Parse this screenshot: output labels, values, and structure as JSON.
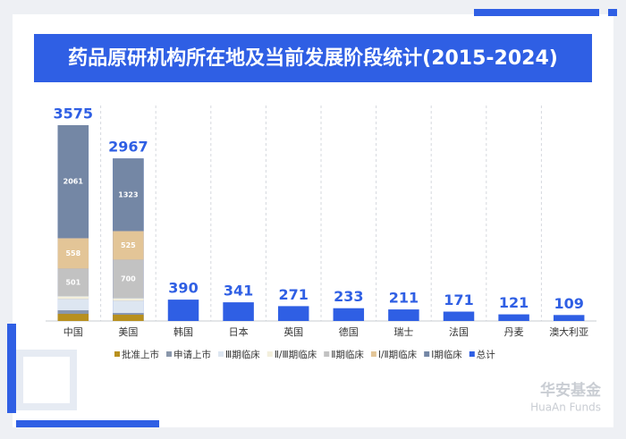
{
  "chart_data": {
    "type": "stacked_bar",
    "title": "药品原研机构所在地及当前发展阶段统计(2015-2024)",
    "categories": [
      "中国",
      "美国",
      "韩国",
      "日本",
      "英国",
      "德国",
      "瑞士",
      "法国",
      "丹麦",
      "澳大利亚"
    ],
    "series": [
      {
        "name": "批准上市",
        "color": "#b8901e",
        "values": [
          130,
          115,
          null,
          null,
          null,
          null,
          null,
          null,
          null,
          null
        ]
      },
      {
        "name": "申请上市",
        "color": "#8a97ab",
        "values": [
          65,
          30,
          null,
          null,
          null,
          null,
          null,
          null,
          null,
          null
        ]
      },
      {
        "name": "Ⅲ期临床",
        "color": "#dde6f1",
        "values": [
          200,
          220,
          null,
          null,
          null,
          null,
          null,
          null,
          null,
          null
        ]
      },
      {
        "name": "Ⅱ/Ⅲ期临床",
        "color": "#f3efdc",
        "values": [
          60,
          54,
          null,
          null,
          null,
          null,
          null,
          null,
          null,
          null
        ]
      },
      {
        "name": "Ⅱ期临床",
        "color": "#c2c2c2",
        "values": [
          501,
          700,
          null,
          null,
          null,
          null,
          null,
          null,
          null,
          null
        ]
      },
      {
        "name": "Ⅰ/Ⅱ期临床",
        "color": "#e3c597",
        "values": [
          558,
          525,
          null,
          null,
          null,
          null,
          null,
          null,
          null,
          null
        ]
      },
      {
        "name": "Ⅰ期临床",
        "color": "#7487a5",
        "values": [
          2061,
          1323,
          null,
          null,
          null,
          null,
          null,
          null,
          null,
          null
        ]
      },
      {
        "name": "总计",
        "color": "#2f5fe4",
        "values": [
          3575,
          2967,
          390,
          341,
          271,
          233,
          211,
          171,
          121,
          109
        ]
      }
    ]
  },
  "watermark": {
    "brand": "华安基金",
    "brand_en": "HuaAn Funds"
  }
}
